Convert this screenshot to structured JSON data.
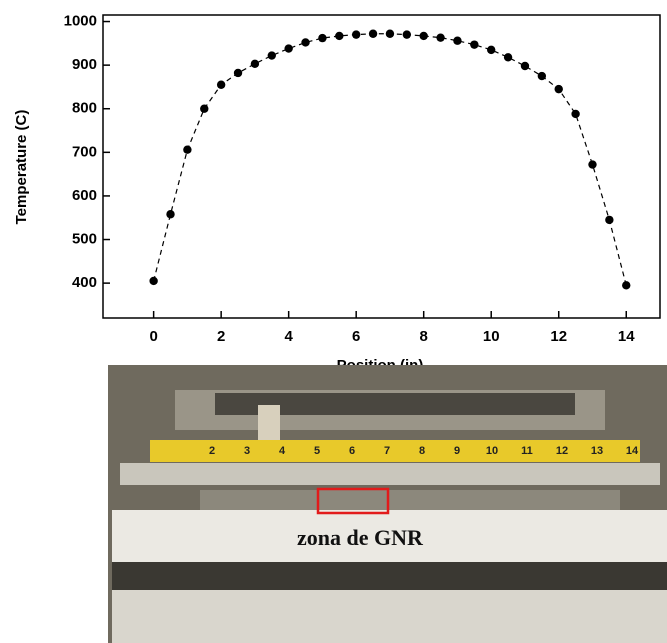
{
  "chart_data": {
    "type": "line",
    "x_label": "Position (in)",
    "y_label": "Temperature (C)",
    "x": [
      0,
      0.5,
      1,
      1.5,
      2,
      2.5,
      3,
      3.5,
      4,
      4.5,
      5,
      5.5,
      6,
      6.5,
      7,
      7.5,
      8,
      8.5,
      9,
      9.5,
      10,
      10.5,
      11,
      11.5,
      12,
      12.5,
      13,
      13.5,
      14
    ],
    "series": [
      {
        "name": "Temperature",
        "color": "#000000",
        "values": [
          405,
          558,
          706,
          800,
          855,
          882,
          903,
          922,
          938,
          952,
          962,
          967,
          970,
          972,
          972,
          970,
          967,
          963,
          956,
          947,
          935,
          918,
          898,
          875,
          845,
          788,
          672,
          545,
          395
        ]
      }
    ],
    "xlim": [
      -1.5,
      15
    ],
    "ylim": [
      320,
      1015
    ],
    "xticks": [
      0,
      2,
      4,
      6,
      8,
      10,
      12,
      14
    ],
    "yticks": [
      400,
      500,
      600,
      700,
      800,
      900,
      1000
    ]
  },
  "photo": {
    "annotation": "zona de GNR",
    "ruler_labels": [
      "2",
      "3",
      "4",
      "5",
      "6",
      "7",
      "8",
      "9",
      "10",
      "11",
      "12",
      "13",
      "14"
    ]
  }
}
